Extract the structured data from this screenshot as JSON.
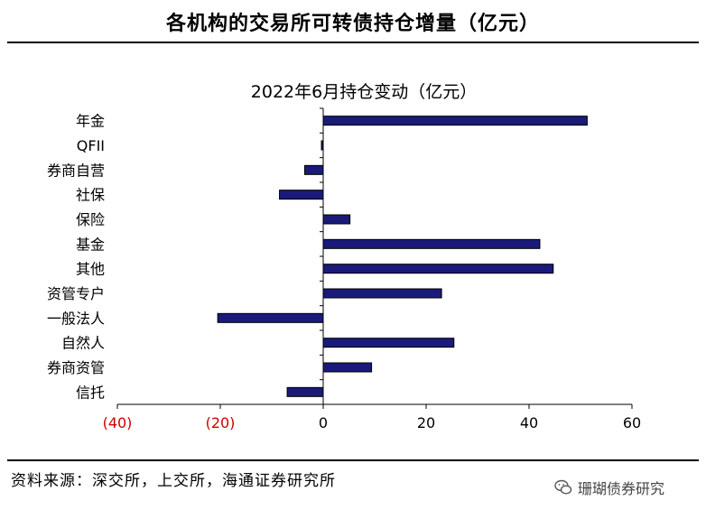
{
  "header": {
    "title": "各机构的交易所可转债持仓增量（亿元）"
  },
  "footer": {
    "source": "资料来源：深交所，上交所，海通证券研究所"
  },
  "watermark": {
    "text": "珊瑚债券研究",
    "icon": "wechat-icon"
  },
  "colors": {
    "bar": "#1a1a7a",
    "negative_tick": "#cc0000",
    "axis": "#000000"
  },
  "chart_data": {
    "type": "bar",
    "orientation": "horizontal",
    "title": "2022年6月持仓变动（亿元）",
    "categories": [
      "年金",
      "QFII",
      "券商自营",
      "社保",
      "保险",
      "基金",
      "其他",
      "资管专户",
      "一般法人",
      "自然人",
      "券商资管",
      "信托"
    ],
    "values": [
      51.3,
      -0.2,
      -3.6,
      -8.5,
      5.2,
      42.1,
      44.7,
      23.0,
      -20.5,
      25.4,
      9.4,
      -7.0
    ],
    "xlim": [
      -40,
      60
    ],
    "xticks": [
      {
        "value": -40,
        "label": "(40)",
        "negative": true
      },
      {
        "value": -20,
        "label": "(20)",
        "negative": true
      },
      {
        "value": 0,
        "label": "0",
        "negative": false
      },
      {
        "value": 20,
        "label": "20",
        "negative": false
      },
      {
        "value": 40,
        "label": "40",
        "negative": false
      },
      {
        "value": 60,
        "label": "60",
        "negative": false
      }
    ],
    "grid": false,
    "legend": "none"
  }
}
